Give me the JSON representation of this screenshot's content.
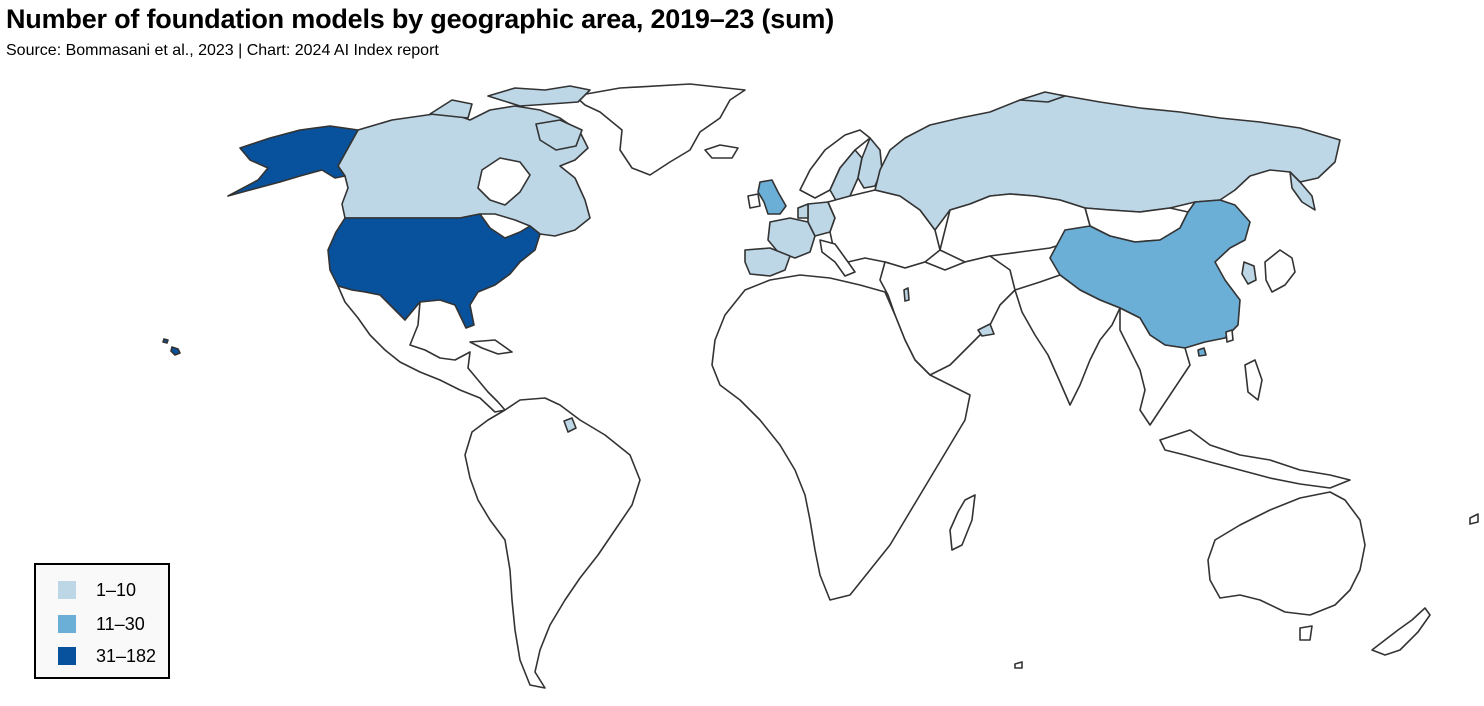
{
  "title": "Number of foundation models by geographic area, 2019–23 (sum)",
  "subtitle": "Source: Bommasani et al., 2023 | Chart: 2024 AI Index report",
  "colors": {
    "none": "#ffffff",
    "bin1": "#bdd7e7",
    "bin2": "#6baed6",
    "bin3": "#08519c",
    "border": "#333333"
  },
  "legend": [
    {
      "label": "1–10",
      "color": "#bdd7e7"
    },
    {
      "label": "11–30",
      "color": "#6baed6"
    },
    {
      "label": "31–182",
      "color": "#08519c"
    }
  ],
  "chart_data": {
    "type": "choropleth",
    "bins": [
      "1–10",
      "11–30",
      "31–182"
    ],
    "regions": [
      {
        "name": "United States",
        "bin": "31–182"
      },
      {
        "name": "China",
        "bin": "11–30"
      },
      {
        "name": "United Kingdom",
        "bin": "11–30"
      },
      {
        "name": "Hong Kong",
        "bin": "11–30"
      },
      {
        "name": "Canada",
        "bin": "1–10"
      },
      {
        "name": "Russia",
        "bin": "1–10"
      },
      {
        "name": "France",
        "bin": "1–10"
      },
      {
        "name": "Germany",
        "bin": "1–10"
      },
      {
        "name": "Spain",
        "bin": "1–10"
      },
      {
        "name": "Netherlands",
        "bin": "1–10"
      },
      {
        "name": "Sweden",
        "bin": "1–10"
      },
      {
        "name": "Finland",
        "bin": "1–10"
      },
      {
        "name": "Israel",
        "bin": "1–10"
      },
      {
        "name": "United Arab Emirates",
        "bin": "1–10"
      },
      {
        "name": "South Korea",
        "bin": "1–10"
      },
      {
        "name": "Greenland",
        "bin": "none"
      }
    ]
  }
}
